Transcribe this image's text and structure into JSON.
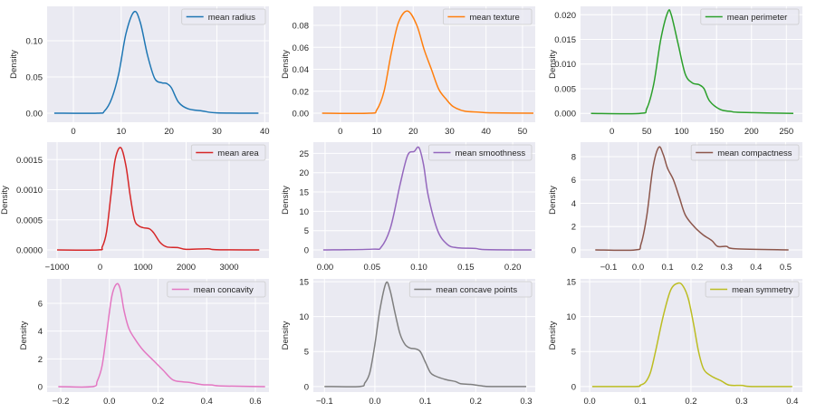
{
  "chart_data": [
    {
      "type": "line",
      "label": "mean radius",
      "ylabel": "Density",
      "color": "#1f77b4",
      "xlim": [
        -5.5,
        40.9
      ],
      "ylim": [
        -0.0125,
        0.1475
      ],
      "xticks": [
        0,
        10,
        20,
        30,
        40
      ],
      "xtick_labels": [
        "0",
        "10",
        "20",
        "30",
        "40"
      ],
      "yticks": [
        0,
        0.05,
        0.1
      ],
      "ytick_labels": [
        "0.00",
        "0.05",
        "0.10"
      ],
      "x": [
        -4,
        5,
        6.5,
        8,
        9.5,
        11,
        12.7,
        14,
        15.5,
        17,
        18.5,
        19.5,
        20.5,
        22,
        24,
        27,
        30,
        38.7
      ],
      "y": [
        0,
        0,
        0.003,
        0.02,
        0.055,
        0.11,
        0.14,
        0.125,
        0.08,
        0.048,
        0.042,
        0.041,
        0.035,
        0.015,
        0.006,
        0.003,
        0.0005,
        0
      ]
    },
    {
      "type": "line",
      "label": "mean texture",
      "ylabel": "Density",
      "color": "#ff7f0e",
      "xlim": [
        -7.4,
        53.5
      ],
      "ylim": [
        -0.0082,
        0.0973
      ],
      "xticks": [
        0,
        10,
        20,
        30,
        40,
        50
      ],
      "xtick_labels": [
        "0",
        "10",
        "20",
        "30",
        "40",
        "50"
      ],
      "yticks": [
        0,
        0.02,
        0.04,
        0.06,
        0.08
      ],
      "ytick_labels": [
        "0.00",
        "0.02",
        "0.04",
        "0.06",
        "0.08"
      ],
      "x": [
        -5,
        8,
        10,
        12,
        14,
        16,
        18.5,
        21,
        23,
        25,
        27,
        29,
        31,
        34,
        38,
        42,
        53
      ],
      "y": [
        0,
        0,
        0.003,
        0.02,
        0.055,
        0.083,
        0.093,
        0.08,
        0.058,
        0.04,
        0.022,
        0.013,
        0.006,
        0.002,
        0.001,
        0.0003,
        0
      ]
    },
    {
      "type": "line",
      "label": "mean perimeter",
      "ylabel": "Density",
      "color": "#2ca02c",
      "xlim": [
        -45,
        273
      ],
      "ylim": [
        -0.0018,
        0.0217
      ],
      "xticks": [
        0,
        50,
        100,
        150,
        200,
        250
      ],
      "xtick_labels": [
        "0",
        "50",
        "100",
        "150",
        "200",
        "250"
      ],
      "yticks": [
        0,
        0.005,
        0.01,
        0.015,
        0.02
      ],
      "ytick_labels": [
        "0.000",
        "0.005",
        "0.010",
        "0.015",
        "0.020"
      ],
      "x": [
        -30,
        40,
        50,
        60,
        70,
        80,
        85,
        95,
        105,
        115,
        125,
        132,
        140,
        155,
        170,
        185,
        260
      ],
      "y": [
        0,
        0,
        0.001,
        0.006,
        0.015,
        0.0205,
        0.02,
        0.014,
        0.008,
        0.0062,
        0.0058,
        0.005,
        0.0025,
        0.0008,
        0.0004,
        0.0002,
        0
      ]
    },
    {
      "type": "line",
      "label": "mean area",
      "ylabel": "Density",
      "color": "#d62728",
      "xlim": [
        -1232,
        3926
      ],
      "ylim": [
        -0.000135,
        0.00179
      ],
      "xticks": [
        -1000,
        0,
        1000,
        2000,
        3000
      ],
      "xtick_labels": [
        "−1000",
        "0",
        "1000",
        "2000",
        "3000"
      ],
      "yticks": [
        0,
        0.0005,
        0.001,
        0.0015
      ],
      "ytick_labels": [
        "0.0000",
        "0.0005",
        "0.0010",
        "0.0015"
      ],
      "x": [
        -1000,
        -50,
        50,
        150,
        250,
        350,
        480,
        600,
        700,
        800,
        900,
        1000,
        1150,
        1250,
        1400,
        1550,
        1800,
        2000,
        2500,
        2700,
        3700
      ],
      "y": [
        0,
        0,
        5e-05,
        0.0003,
        0.0009,
        0.0015,
        0.0017,
        0.0014,
        0.0009,
        0.0005,
        0.0004,
        0.00037,
        0.00035,
        0.00028,
        0.00012,
        5e-05,
        4e-05,
        1e-05,
        2e-05,
        5e-06,
        0
      ]
    },
    {
      "type": "line",
      "label": "mean smoothness",
      "ylabel": "Density",
      "color": "#9467bd",
      "xlim": [
        -0.0125,
        0.224
      ],
      "ylim": [
        -2.1,
        27.9
      ],
      "xticks": [
        0,
        0.05,
        0.1,
        0.15,
        0.2
      ],
      "xtick_labels": [
        "0.00",
        "0.05",
        "0.10",
        "0.15",
        "0.20"
      ],
      "yticks": [
        0,
        5,
        10,
        15,
        20,
        25
      ],
      "ytick_labels": [
        "0",
        "5",
        "10",
        "15",
        "20",
        "25"
      ],
      "x": [
        -0.002,
        0.05,
        0.06,
        0.07,
        0.08,
        0.088,
        0.095,
        0.1,
        0.105,
        0.11,
        0.12,
        0.13,
        0.14,
        0.16,
        0.17,
        0.22
      ],
      "y": [
        0,
        0.2,
        0.8,
        6,
        17,
        24.5,
        25.5,
        26.5,
        22,
        14,
        5,
        1.5,
        0.6,
        0.4,
        0.1,
        0
      ]
    },
    {
      "type": "line",
      "label": "mean compactness",
      "ylabel": "Density",
      "color": "#8c564b",
      "xlim": [
        -0.195,
        0.557
      ],
      "ylim": [
        -0.7,
        9.24
      ],
      "xticks": [
        -0.1,
        0,
        0.1,
        0.2,
        0.3,
        0.4,
        0.5
      ],
      "xtick_labels": [
        "−0.1",
        "0.0",
        "0.1",
        "0.2",
        "0.3",
        "0.4",
        "0.5"
      ],
      "yticks": [
        0,
        2,
        4,
        6,
        8
      ],
      "ytick_labels": [
        "0",
        "2",
        "4",
        "6",
        "8"
      ],
      "x": [
        -0.145,
        -0.01,
        0.01,
        0.03,
        0.05,
        0.07,
        0.085,
        0.1,
        0.12,
        0.14,
        0.16,
        0.19,
        0.22,
        0.25,
        0.27,
        0.3,
        0.33,
        0.51
      ],
      "y": [
        0,
        0,
        0.5,
        3,
        7,
        8.8,
        8.2,
        7,
        6,
        4.5,
        3,
        2,
        1.3,
        0.8,
        0.3,
        0.3,
        0.1,
        0
      ]
    },
    {
      "type": "line",
      "label": "mean concavity",
      "ylabel": "Density",
      "color": "#e377c2",
      "xlim": [
        -0.256,
        0.656
      ],
      "ylim": [
        -0.39,
        7.76
      ],
      "xticks": [
        -0.2,
        0,
        0.2,
        0.4,
        0.6
      ],
      "xtick_labels": [
        "−0.2",
        "0.0",
        "0.2",
        "0.4",
        "0.6"
      ],
      "yticks": [
        0,
        2,
        4,
        6
      ],
      "ytick_labels": [
        "0",
        "2",
        "4",
        "6"
      ],
      "x": [
        -0.21,
        -0.07,
        -0.05,
        -0.03,
        -0.01,
        0.01,
        0.03,
        0.045,
        0.06,
        0.08,
        0.11,
        0.14,
        0.18,
        0.22,
        0.26,
        0.3,
        0.33,
        0.38,
        0.42,
        0.46,
        0.64
      ],
      "y": [
        0,
        0,
        0.4,
        1.5,
        4,
        6.5,
        7.4,
        7,
        5.5,
        4.2,
        3.3,
        2.6,
        1.9,
        1.2,
        0.5,
        0.35,
        0.3,
        0.15,
        0.12,
        0.05,
        0
      ]
    },
    {
      "type": "line",
      "label": "mean concave points",
      "ylabel": "Density",
      "color": "#7f7f7f",
      "xlim": [
        -0.122,
        0.318
      ],
      "ylim": [
        -0.8,
        15.4
      ],
      "xticks": [
        -0.1,
        0,
        0.1,
        0.2,
        0.3
      ],
      "xtick_labels": [
        "−0.1",
        "0.0",
        "0.1",
        "0.2",
        "0.3"
      ],
      "yticks": [
        0,
        5,
        10,
        15
      ],
      "ytick_labels": [
        "0",
        "5",
        "10",
        "15"
      ],
      "x": [
        -0.1,
        -0.03,
        -0.02,
        -0.01,
        0,
        0.01,
        0.022,
        0.03,
        0.04,
        0.05,
        0.06,
        0.07,
        0.08,
        0.09,
        0.1,
        0.11,
        0.12,
        0.14,
        0.16,
        0.17,
        0.19,
        0.21,
        0.23,
        0.3
      ],
      "y": [
        0,
        0,
        0.5,
        2,
        6,
        11,
        14.8,
        13.8,
        10.5,
        7.5,
        6,
        5.5,
        5.4,
        5,
        3.5,
        2,
        1.5,
        1,
        0.7,
        0.4,
        0.3,
        0.1,
        0,
        0
      ]
    },
    {
      "type": "line",
      "label": "mean symmetry",
      "ylabel": "Density",
      "color": "#bcbd22",
      "xlim": [
        -0.018,
        0.42
      ],
      "ylim": [
        -0.8,
        15.4
      ],
      "xticks": [
        0,
        0.1,
        0.2,
        0.3,
        0.4
      ],
      "xtick_labels": [
        "0.0",
        "0.1",
        "0.2",
        "0.3",
        "0.4"
      ],
      "yticks": [
        0,
        5,
        10,
        15
      ],
      "ytick_labels": [
        "0",
        "5",
        "10",
        "15"
      ],
      "x": [
        0.005,
        0.09,
        0.1,
        0.11,
        0.12,
        0.13,
        0.145,
        0.16,
        0.175,
        0.185,
        0.195,
        0.205,
        0.215,
        0.225,
        0.24,
        0.26,
        0.275,
        0.3,
        0.32,
        0.4
      ],
      "y": [
        0,
        0,
        0.2,
        0.6,
        2,
        5,
        10,
        13.8,
        14.8,
        14.3,
        12.5,
        9,
        5,
        2.5,
        1.5,
        0.8,
        0.2,
        0.15,
        0,
        0
      ]
    }
  ]
}
